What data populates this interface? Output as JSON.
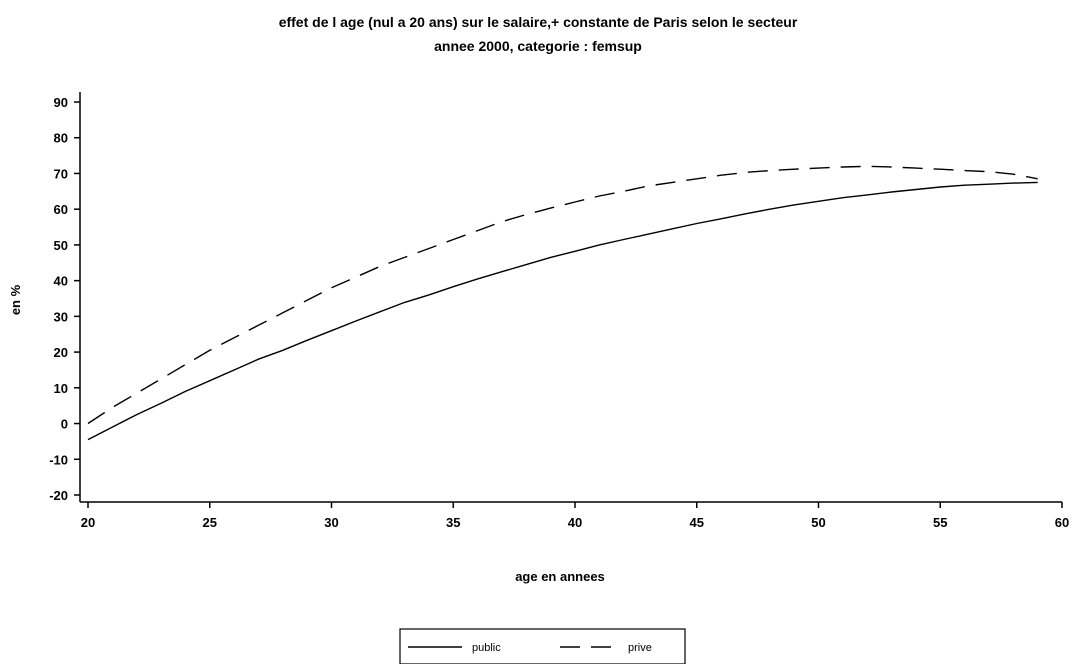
{
  "chart_data": {
    "type": "line",
    "title": "effet de l age (nul a 20 ans) sur le salaire,+ constante de Paris selon le secteur",
    "subtitle": "annee 2000, categorie : femsup",
    "xlabel": "age en annees",
    "ylabel": "en %",
    "xlim": [
      20,
      60
    ],
    "ylim": [
      -20,
      90
    ],
    "x_ticks": [
      20,
      25,
      30,
      35,
      40,
      45,
      50,
      55,
      60
    ],
    "y_ticks": [
      -20,
      -10,
      0,
      10,
      20,
      30,
      40,
      50,
      60,
      70,
      80,
      90
    ],
    "x": [
      20,
      21,
      22,
      23,
      24,
      25,
      26,
      27,
      28,
      29,
      30,
      31,
      32,
      33,
      34,
      35,
      36,
      37,
      38,
      39,
      40,
      41,
      42,
      43,
      44,
      45,
      46,
      47,
      48,
      49,
      50,
      51,
      52,
      53,
      54,
      55,
      56,
      57,
      58,
      59
    ],
    "series": [
      {
        "name": "public",
        "style": "solid",
        "values": [
          -4.5,
          -1,
          2.5,
          5.7,
          9,
          12,
          15,
          18,
          20.5,
          23.3,
          26,
          28.7,
          31.3,
          33.9,
          36,
          38.3,
          40.5,
          42.5,
          44.5,
          46.5,
          48.2,
          50,
          51.5,
          53,
          54.5,
          56,
          57.3,
          58.7,
          60,
          61.2,
          62.2,
          63.2,
          64,
          64.8,
          65.5,
          66.2,
          66.7,
          67,
          67.3,
          67.5
        ]
      },
      {
        "name": "prive",
        "style": "dashed",
        "values": [
          0,
          4.5,
          8.5,
          12.5,
          16.5,
          20.5,
          24,
          27.5,
          31,
          34.5,
          38,
          41,
          44,
          46.5,
          49,
          51.5,
          54,
          56.5,
          58.5,
          60.3,
          62,
          63.7,
          65,
          66.5,
          67.5,
          68.5,
          69.5,
          70.3,
          70.8,
          71.2,
          71.5,
          71.8,
          72,
          71.8,
          71.5,
          71.2,
          70.8,
          70.5,
          69.8,
          68.5
        ]
      }
    ],
    "legend_position": "bottom-center",
    "grid": false
  }
}
